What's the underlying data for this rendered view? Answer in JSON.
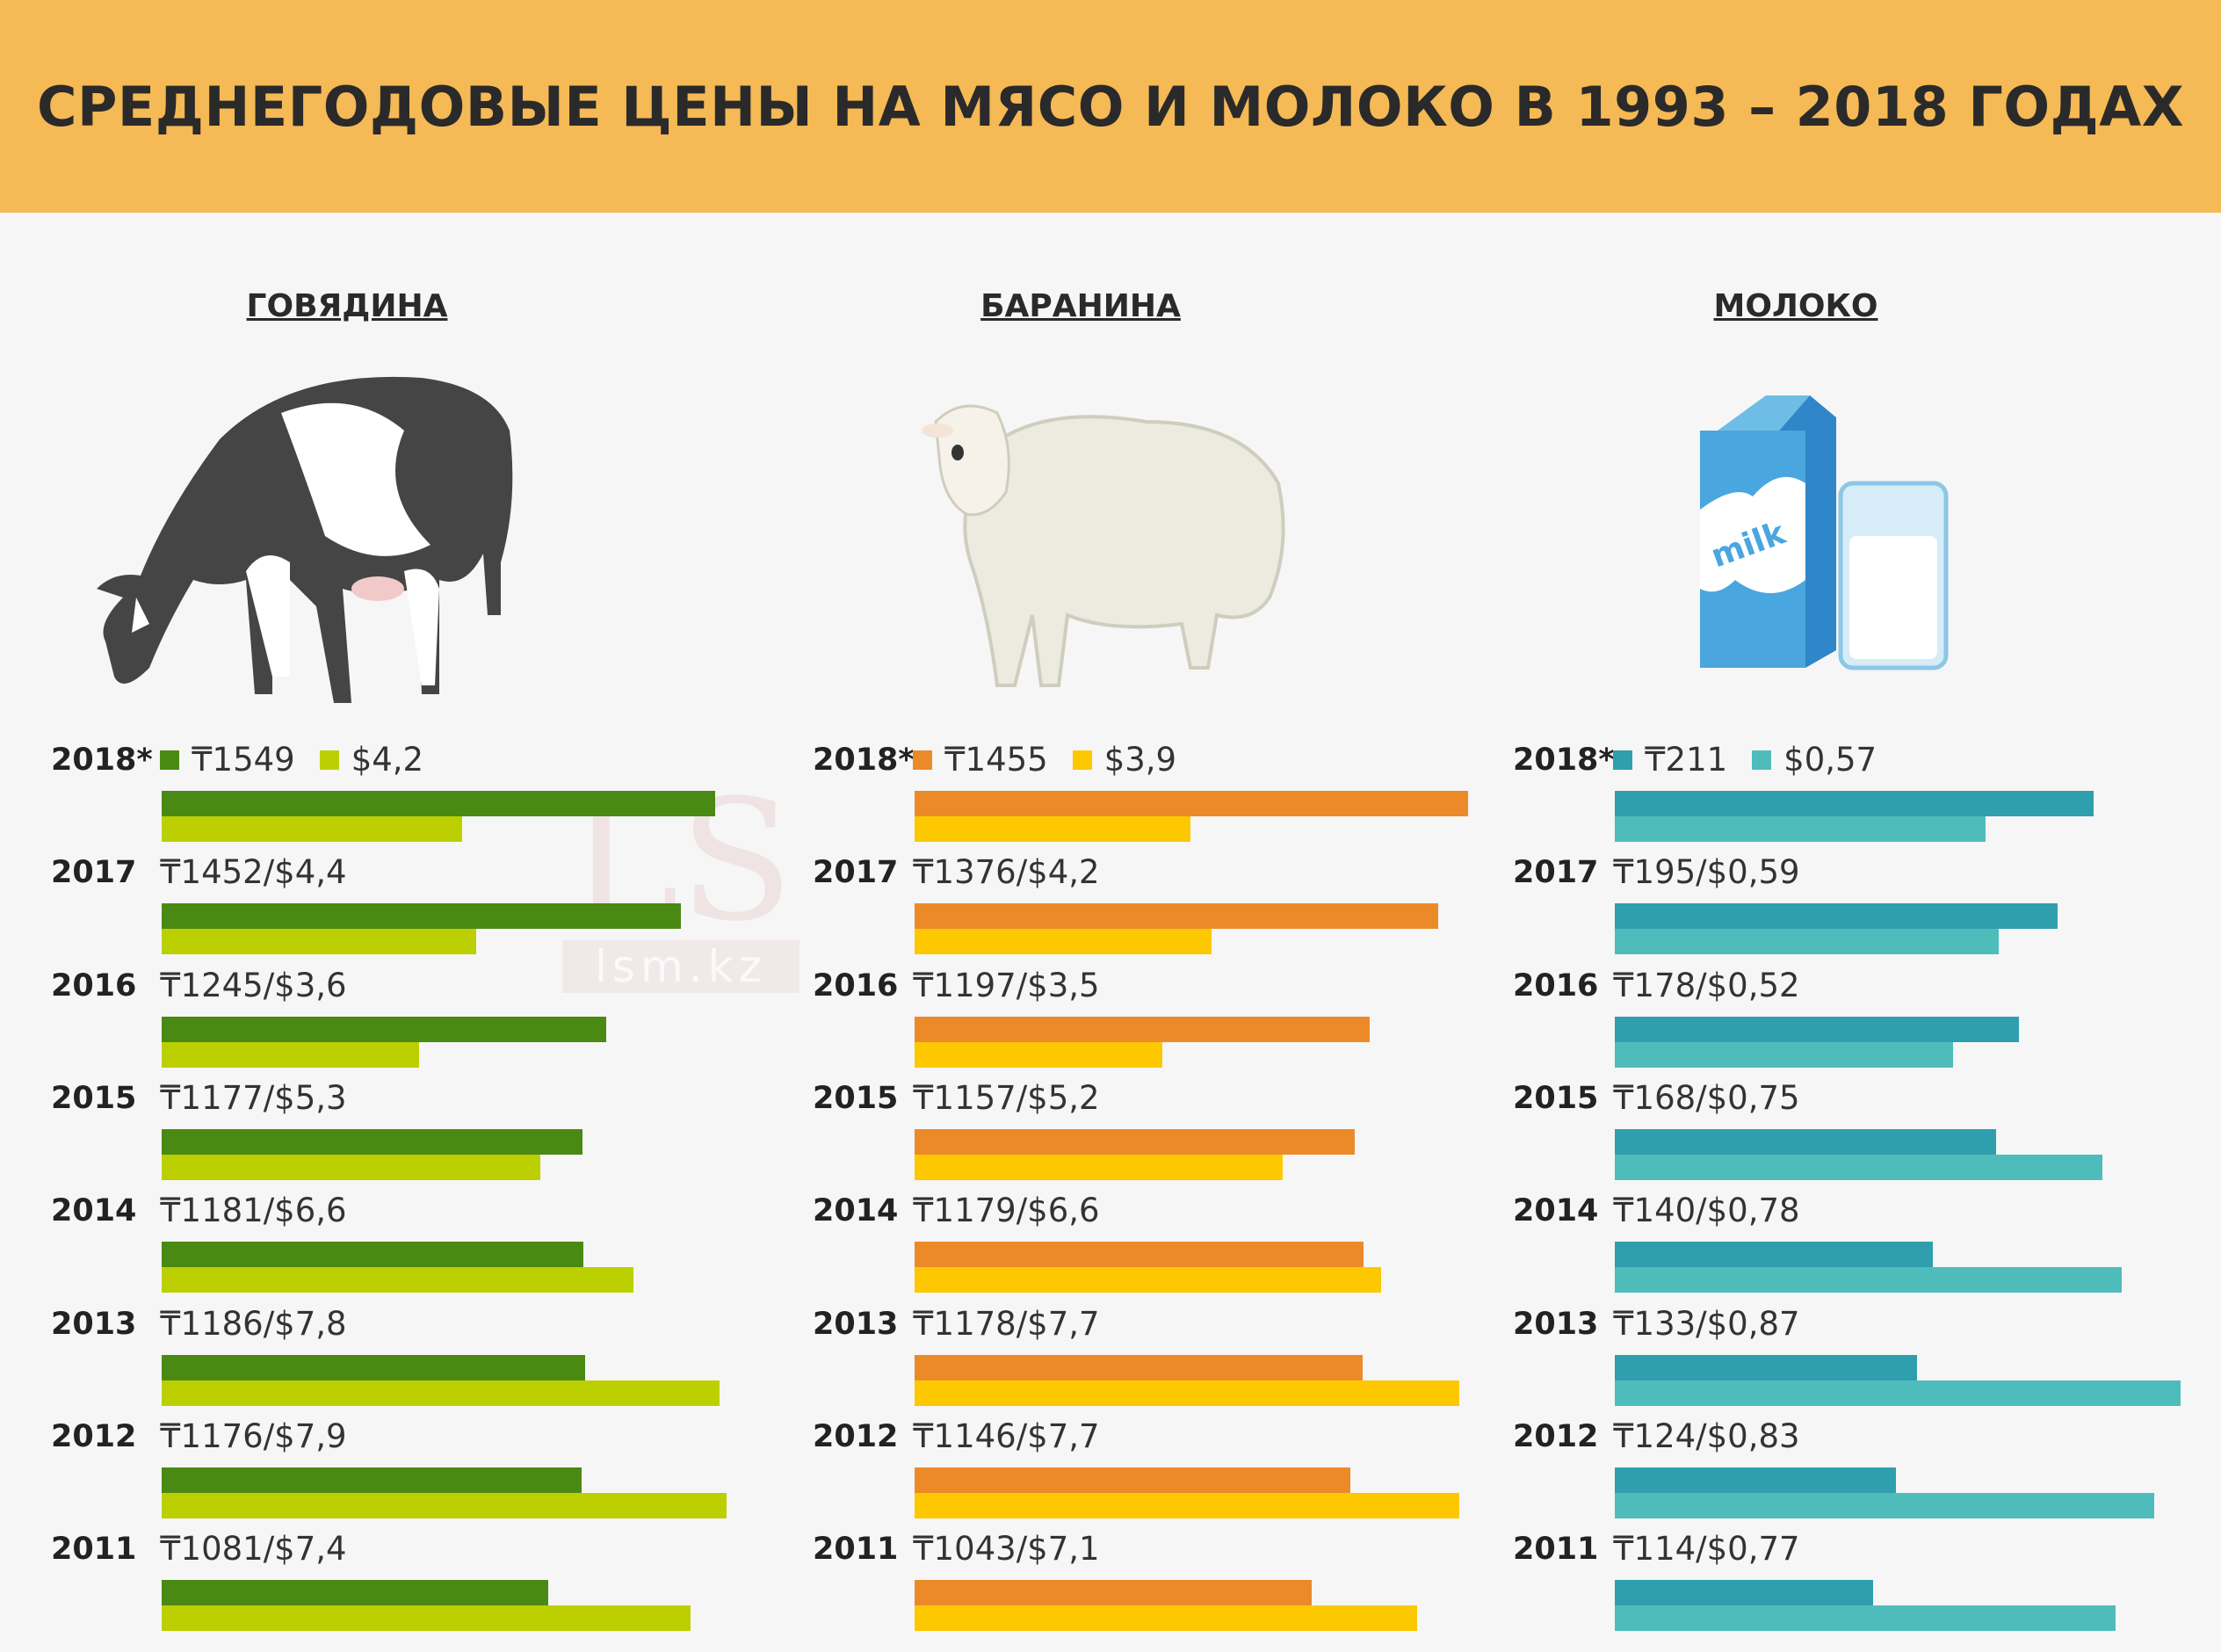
{
  "header": {
    "title": "СРЕДНЕГОДОВЫЕ ЦЕНЫ НА МЯСО И МОЛОКО В 1993 – 2018 ГОДАХ"
  },
  "watermark": {
    "logo": "LS",
    "site": "lsm.kz"
  },
  "chart_data": [
    {
      "type": "bar",
      "orientation": "horizontal",
      "title": "ГОВЯДИНА",
      "colors": {
        "tenge": "#4a8a14",
        "usd": "#bccf00"
      },
      "legend": [
        "₸",
        "$"
      ],
      "categories": [
        "2018*",
        "2017",
        "2016",
        "2015",
        "2014",
        "2013",
        "2012",
        "2011"
      ],
      "series": [
        {
          "name": "tenge",
          "values": [
            1549,
            1452,
            1245,
            1177,
            1181,
            1186,
            1176,
            1081
          ]
        },
        {
          "name": "usd",
          "values": [
            4.2,
            4.4,
            3.6,
            5.3,
            6.6,
            7.8,
            7.9,
            7.4
          ]
        }
      ],
      "labels_tenge": [
        "₸1549",
        "₸1452",
        "₸1245",
        "₸1177",
        "₸1181",
        "₸1186",
        "₸1176",
        "₸1081"
      ],
      "labels_usd": [
        "$4,2",
        "$4,4",
        "$3,6",
        "$5,3",
        "$6,6",
        "$7,8",
        "$7,9",
        "$7,4"
      ]
    },
    {
      "type": "bar",
      "orientation": "horizontal",
      "title": "БАРАНИНА",
      "colors": {
        "tenge": "#ec8a2a",
        "usd": "#fdc800"
      },
      "legend": [
        "₸",
        "$"
      ],
      "categories": [
        "2018*",
        "2017",
        "2016",
        "2015",
        "2014",
        "2013",
        "2012",
        "2011"
      ],
      "series": [
        {
          "name": "tenge",
          "values": [
            1455,
            1376,
            1197,
            1157,
            1179,
            1178,
            1146,
            1043
          ]
        },
        {
          "name": "usd",
          "values": [
            3.9,
            4.2,
            3.5,
            5.2,
            6.6,
            7.7,
            7.7,
            7.1
          ]
        }
      ],
      "labels_tenge": [
        "₸1455",
        "₸1376",
        "₸1197",
        "₸1157",
        "₸1179",
        "₸1178",
        "₸1146",
        "₸1043"
      ],
      "labels_usd": [
        "$3,9",
        "$4,2",
        "$3,5",
        "$5,2",
        "$6,6",
        "$7,7",
        "$7,7",
        "$7,1"
      ]
    },
    {
      "type": "bar",
      "orientation": "horizontal",
      "title": "МОЛОКО",
      "colors": {
        "tenge": "#2f9fae",
        "usd": "#4fbcbc"
      },
      "legend": [
        "₸",
        "$"
      ],
      "categories": [
        "2018*",
        "2017",
        "2016",
        "2015",
        "2014",
        "2013",
        "2012",
        "2011"
      ],
      "series": [
        {
          "name": "tenge",
          "values": [
            211,
            195,
            178,
            168,
            140,
            133,
            124,
            114
          ]
        },
        {
          "name": "usd",
          "values": [
            0.57,
            0.59,
            0.52,
            0.75,
            0.78,
            0.87,
            0.83,
            0.77
          ]
        }
      ],
      "labels_tenge": [
        "₸211",
        "₸195",
        "₸178",
        "₸168",
        "₸140",
        "₸133",
        "₸124",
        "₸114"
      ],
      "labels_usd": [
        "$0,57",
        "$0,59",
        "$0,52",
        "$0,75",
        "$0,78",
        "$0,87",
        "$0,83",
        "$0,77"
      ]
    }
  ]
}
